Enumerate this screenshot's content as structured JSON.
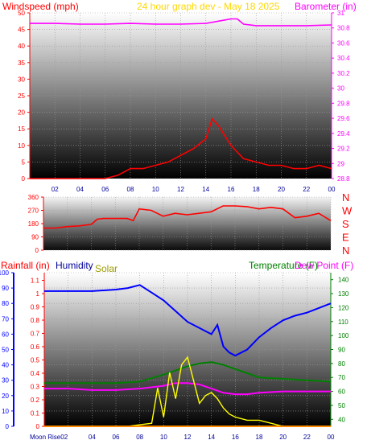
{
  "colors": {
    "red": "#ff0000",
    "magenta": "#ff00ff",
    "blue": "#0000ff",
    "yellow": "#ffff00",
    "green": "#008000",
    "olive": "#9c9c00",
    "title_gold": "#ffd700",
    "navy": "#000099"
  },
  "header": {
    "windspeed": "Windspeed (mph)",
    "graph_title": "24 hour graph dev - May 18 2025",
    "barometer": "Barometer (in)"
  },
  "chart_data": [
    {
      "type": "line",
      "y_left_ticks": [
        "0",
        "5",
        "10",
        "15",
        "20",
        "25",
        "30",
        "35",
        "40",
        "45",
        "50"
      ],
      "y_right_ticks": [
        "28.8",
        "29",
        "29.2",
        "29.4",
        "29.6",
        "29.8",
        "30",
        "30.2",
        "30.4",
        "30.6",
        "30.8",
        "31"
      ],
      "x_ticks": [
        "02",
        "04",
        "06",
        "08",
        "10",
        "12",
        "14",
        "16",
        "18",
        "20",
        "22",
        "00"
      ],
      "ylim_left": [
        0,
        50
      ],
      "ylim_right": [
        28.8,
        31
      ],
      "series": [
        {
          "name": "Windspeed (mph)",
          "color": "red",
          "x": [
            0,
            1,
            2,
            3,
            4,
            5,
            6,
            7,
            7.5,
            8,
            9,
            10,
            11,
            12,
            13,
            14,
            14.5,
            15,
            15.5,
            16,
            16.5,
            17,
            18,
            19,
            20,
            21,
            22,
            23,
            24
          ],
          "y": [
            0,
            0,
            0,
            0,
            0,
            0,
            0,
            1,
            2,
            3,
            3,
            4,
            5,
            7,
            9,
            12,
            18,
            16,
            13,
            10,
            8,
            6,
            5,
            4,
            4,
            3,
            3,
            4,
            3
          ]
        },
        {
          "name": "Barometer (in)",
          "color": "magenta",
          "x": [
            0,
            2,
            4,
            6,
            8,
            10,
            12,
            14,
            15,
            16,
            16.5,
            17,
            18,
            20,
            22,
            24
          ],
          "y": [
            30.86,
            30.86,
            30.85,
            30.85,
            30.86,
            30.85,
            30.85,
            30.86,
            30.89,
            30.92,
            30.92,
            30.85,
            30.83,
            30.83,
            30.83,
            30.84
          ]
        }
      ]
    },
    {
      "type": "line",
      "y_left_ticks": [
        "0",
        "90",
        "180",
        "270",
        "360"
      ],
      "ylim": [
        0,
        360
      ],
      "direction_labels": [
        "N",
        "W",
        "S",
        "E",
        "N"
      ],
      "series": [
        {
          "name": "Wind direction",
          "color": "red",
          "x": [
            0,
            1,
            2,
            3,
            4,
            4.5,
            5,
            6,
            7,
            7.5,
            8,
            9,
            10,
            11,
            12,
            13,
            14,
            15,
            16,
            17,
            18,
            19,
            20,
            21,
            22,
            23,
            24
          ],
          "y": [
            150,
            150,
            160,
            165,
            175,
            210,
            215,
            215,
            215,
            200,
            280,
            270,
            230,
            250,
            240,
            250,
            260,
            300,
            300,
            295,
            280,
            290,
            280,
            220,
            230,
            250,
            200
          ]
        }
      ]
    },
    {
      "type": "line",
      "labels": {
        "rainfall": "Rainfall (in)",
        "humidity": "Humidity",
        "solar": "Solar",
        "temperature": "Temperature (F)",
        "dew_point": "Dew Point (F)"
      },
      "y_left_ticks": [
        "0",
        "10",
        "20",
        "30",
        "40",
        "50",
        "60",
        "70",
        "80",
        "90",
        "100"
      ],
      "y_rain_ticks": [
        "0",
        "0.1",
        "0.2",
        "0.3",
        "0.4",
        "0.5",
        "0.6",
        "0.7",
        "0.8",
        "0.9",
        "1",
        "1.1"
      ],
      "y_right_ticks": [
        "40",
        "50",
        "60",
        "70",
        "80",
        "90",
        "100",
        "110",
        "120",
        "130",
        "140"
      ],
      "x_ticks": [
        "02",
        "04",
        "06",
        "08",
        "10",
        "12",
        "14",
        "16",
        "18",
        "20",
        "22",
        "00"
      ],
      "moon_label": "Moon Rise02",
      "ylim_left": [
        0,
        100
      ],
      "ylim_right": [
        35,
        145
      ],
      "series": [
        {
          "name": "Humidity",
          "color": "blue",
          "x": [
            0,
            2,
            4,
            6,
            7,
            8,
            9,
            10,
            11,
            12,
            13,
            14,
            14.5,
            15,
            15.5,
            16,
            17,
            18,
            19,
            20,
            21,
            22,
            23,
            24
          ],
          "y": [
            88,
            88,
            88,
            89,
            90,
            92,
            87,
            82,
            75,
            68,
            64,
            60,
            66,
            52,
            48,
            46,
            50,
            58,
            64,
            69,
            72,
            74,
            77,
            80
          ]
        },
        {
          "name": "Temperature (F)",
          "color": "green",
          "x": [
            0,
            2,
            4,
            6,
            8,
            10,
            12,
            13,
            14,
            15,
            16,
            17,
            18,
            20,
            22,
            24
          ],
          "y": [
            66,
            66,
            66,
            66,
            67,
            72,
            78,
            80,
            81,
            79,
            76,
            73,
            70,
            69,
            68,
            67
          ]
        },
        {
          "name": "Dew Point (F)",
          "color": "magenta",
          "x": [
            0,
            2,
            4,
            6,
            8,
            10,
            11,
            12,
            13,
            14,
            15,
            16,
            17,
            18,
            20,
            22,
            24
          ],
          "y": [
            62,
            62,
            61,
            61,
            62,
            64,
            66,
            66,
            65,
            62,
            59,
            58,
            58,
            59,
            60,
            60,
            60
          ]
        },
        {
          "name": "Solar",
          "color": "yellow",
          "x": [
            0,
            6,
            7,
            8,
            9,
            9.5,
            10,
            10.5,
            11,
            11.5,
            12,
            12.5,
            13,
            13.5,
            14,
            14.5,
            15,
            15.5,
            16,
            17,
            18,
            19,
            20,
            24
          ],
          "y": [
            0,
            0,
            0,
            1,
            2,
            25,
            6,
            35,
            18,
            40,
            45,
            30,
            15,
            20,
            22,
            18,
            12,
            8,
            6,
            4,
            4,
            2,
            0,
            0
          ]
        },
        {
          "name": "Rainfall (in)",
          "color": "red",
          "x": [
            0,
            24
          ],
          "y": [
            0,
            0
          ]
        }
      ]
    }
  ]
}
